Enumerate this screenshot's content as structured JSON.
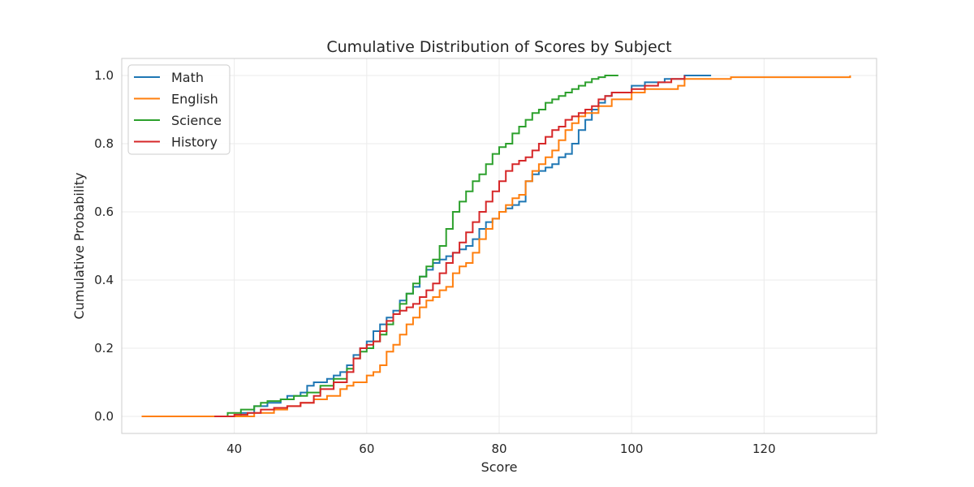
{
  "chart_data": {
    "type": "line",
    "step": true,
    "title": "Cumulative Distribution of Scores by Subject",
    "xlabel": "Score",
    "ylabel": "Cumulative Probability",
    "xlim": [
      23,
      137
    ],
    "ylim": [
      -0.05,
      1.05
    ],
    "xticks": [
      40,
      60,
      80,
      100,
      120
    ],
    "yticks": [
      0.0,
      0.2,
      0.4,
      0.6,
      0.8,
      1.0
    ],
    "ytick_labels": [
      "0.0",
      "0.2",
      "0.4",
      "0.6",
      "0.8",
      "1.0"
    ],
    "grid": true,
    "legend": "top-left",
    "series": [
      {
        "name": "Math",
        "color": "#1f77b4",
        "x": [
          34,
          41,
          43,
          45,
          47,
          48,
          50,
          51,
          52,
          54,
          55,
          56,
          57,
          58,
          59,
          60,
          61,
          62,
          63,
          64,
          65,
          66,
          67,
          68,
          69,
          70,
          71,
          72,
          73,
          74,
          75,
          76,
          77,
          78,
          79,
          80,
          81,
          82,
          83,
          84,
          85,
          86,
          87,
          88,
          89,
          90,
          91,
          92,
          93,
          94,
          95,
          96,
          97,
          100,
          102,
          105,
          108,
          112
        ],
        "y": [
          0.0,
          0.01,
          0.03,
          0.04,
          0.05,
          0.06,
          0.07,
          0.09,
          0.1,
          0.11,
          0.12,
          0.13,
          0.15,
          0.18,
          0.2,
          0.22,
          0.25,
          0.27,
          0.29,
          0.31,
          0.34,
          0.36,
          0.38,
          0.41,
          0.43,
          0.45,
          0.46,
          0.47,
          0.48,
          0.49,
          0.5,
          0.52,
          0.55,
          0.57,
          0.58,
          0.6,
          0.61,
          0.62,
          0.63,
          0.69,
          0.71,
          0.72,
          0.73,
          0.74,
          0.76,
          0.77,
          0.8,
          0.84,
          0.87,
          0.9,
          0.92,
          0.94,
          0.95,
          0.97,
          0.98,
          0.99,
          1.0,
          1.0
        ]
      },
      {
        "name": "English",
        "color": "#ff7f0e",
        "x": [
          26,
          38,
          43,
          46,
          48,
          50,
          52,
          54,
          56,
          57,
          58,
          60,
          61,
          62,
          63,
          64,
          65,
          66,
          67,
          68,
          69,
          70,
          71,
          72,
          73,
          74,
          75,
          76,
          77,
          78,
          79,
          80,
          81,
          82,
          83,
          84,
          85,
          86,
          87,
          88,
          89,
          90,
          91,
          92,
          93,
          95,
          97,
          100,
          102,
          104,
          107,
          108,
          115,
          133
        ],
        "y": [
          0.0,
          0.0,
          0.01,
          0.02,
          0.03,
          0.04,
          0.05,
          0.06,
          0.08,
          0.09,
          0.1,
          0.12,
          0.13,
          0.15,
          0.19,
          0.21,
          0.24,
          0.27,
          0.29,
          0.32,
          0.34,
          0.35,
          0.37,
          0.38,
          0.42,
          0.44,
          0.45,
          0.48,
          0.52,
          0.55,
          0.58,
          0.6,
          0.62,
          0.64,
          0.65,
          0.69,
          0.72,
          0.74,
          0.76,
          0.78,
          0.81,
          0.84,
          0.86,
          0.88,
          0.89,
          0.91,
          0.93,
          0.95,
          0.96,
          0.96,
          0.97,
          0.99,
          0.995,
          1.0
        ]
      },
      {
        "name": "Science",
        "color": "#2ca02c",
        "x": [
          37,
          39,
          41,
          43,
          44,
          45,
          47,
          49,
          51,
          53,
          55,
          57,
          58,
          59,
          60,
          61,
          62,
          63,
          64,
          65,
          66,
          67,
          68,
          69,
          70,
          71,
          72,
          73,
          74,
          75,
          76,
          77,
          78,
          79,
          80,
          81,
          82,
          83,
          84,
          85,
          86,
          87,
          88,
          89,
          90,
          91,
          92,
          93,
          94,
          95,
          96,
          98
        ],
        "y": [
          0.0,
          0.01,
          0.02,
          0.03,
          0.04,
          0.045,
          0.05,
          0.06,
          0.07,
          0.09,
          0.11,
          0.14,
          0.17,
          0.19,
          0.2,
          0.22,
          0.24,
          0.27,
          0.3,
          0.33,
          0.36,
          0.39,
          0.41,
          0.44,
          0.46,
          0.5,
          0.55,
          0.6,
          0.63,
          0.66,
          0.69,
          0.71,
          0.74,
          0.77,
          0.79,
          0.8,
          0.83,
          0.85,
          0.87,
          0.89,
          0.9,
          0.92,
          0.93,
          0.94,
          0.95,
          0.96,
          0.97,
          0.98,
          0.99,
          0.995,
          1.0,
          1.0
        ]
      },
      {
        "name": "History",
        "color": "#d62728",
        "x": [
          37,
          40,
          42,
          44,
          46,
          48,
          50,
          52,
          53,
          55,
          57,
          58,
          59,
          60,
          61,
          62,
          63,
          64,
          65,
          66,
          67,
          68,
          69,
          70,
          71,
          72,
          73,
          74,
          75,
          76,
          77,
          78,
          79,
          80,
          81,
          82,
          83,
          84,
          85,
          86,
          87,
          88,
          89,
          90,
          91,
          92,
          93,
          94,
          95,
          96,
          97,
          100,
          102,
          104,
          106,
          108
        ],
        "y": [
          0.0,
          0.005,
          0.01,
          0.02,
          0.025,
          0.03,
          0.04,
          0.06,
          0.08,
          0.1,
          0.13,
          0.17,
          0.2,
          0.21,
          0.22,
          0.25,
          0.28,
          0.3,
          0.31,
          0.32,
          0.33,
          0.35,
          0.37,
          0.39,
          0.42,
          0.45,
          0.48,
          0.51,
          0.54,
          0.57,
          0.6,
          0.63,
          0.66,
          0.69,
          0.72,
          0.74,
          0.75,
          0.76,
          0.78,
          0.8,
          0.82,
          0.84,
          0.85,
          0.87,
          0.88,
          0.89,
          0.9,
          0.91,
          0.93,
          0.94,
          0.95,
          0.96,
          0.97,
          0.98,
          0.99,
          1.0
        ]
      }
    ]
  }
}
